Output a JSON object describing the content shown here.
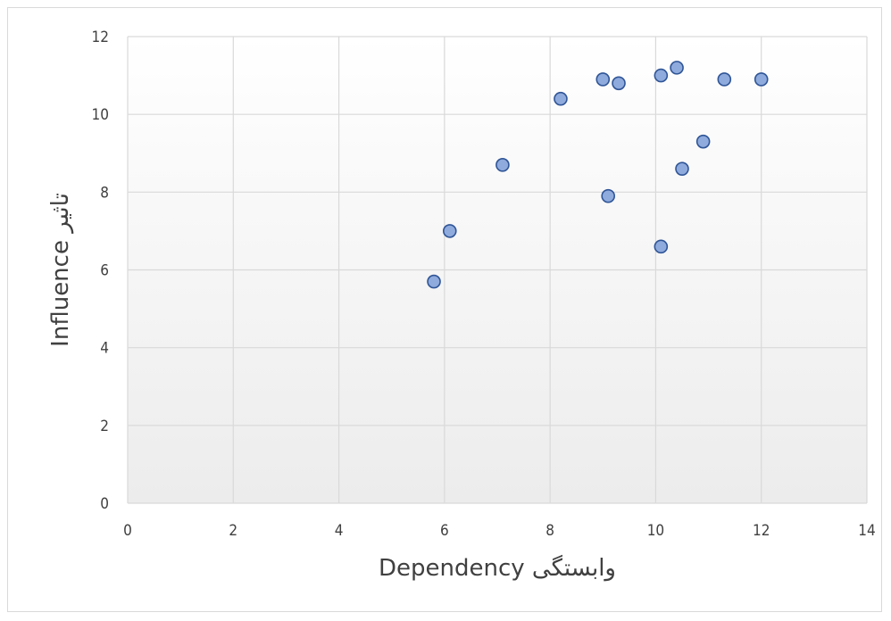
{
  "chart_data": {
    "type": "scatter",
    "xlabel": "وابستگی Dependency",
    "ylabel": "تاثیر Influence",
    "xlim": [
      0,
      14
    ],
    "ylim": [
      0,
      12
    ],
    "x_ticks": [
      0,
      2,
      4,
      6,
      8,
      10,
      12,
      14
    ],
    "y_ticks": [
      0,
      2,
      4,
      6,
      8,
      10,
      12
    ],
    "grid": true,
    "legend": "none",
    "marker_color": "#8FAADC",
    "marker_edge_color": "#2F5597",
    "points": [
      {
        "x": 5.8,
        "y": 5.7
      },
      {
        "x": 6.1,
        "y": 7.0
      },
      {
        "x": 7.1,
        "y": 8.7
      },
      {
        "x": 8.2,
        "y": 10.4
      },
      {
        "x": 9.0,
        "y": 10.9
      },
      {
        "x": 9.1,
        "y": 7.9
      },
      {
        "x": 9.3,
        "y": 10.8
      },
      {
        "x": 10.1,
        "y": 11.0
      },
      {
        "x": 10.1,
        "y": 6.6
      },
      {
        "x": 10.4,
        "y": 11.2
      },
      {
        "x": 10.5,
        "y": 8.6
      },
      {
        "x": 10.9,
        "y": 9.3
      },
      {
        "x": 11.3,
        "y": 10.9
      },
      {
        "x": 12.0,
        "y": 10.9
      }
    ]
  }
}
